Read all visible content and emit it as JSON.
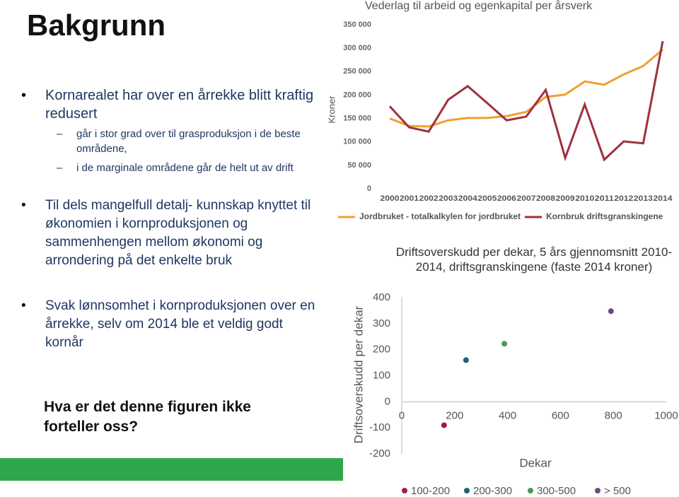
{
  "title": "Bakgrunn",
  "bullets": [
    {
      "text": "Kornarealet har over en årrekke blitt kraftig redusert",
      "sub": [
        "går i stor grad over til grasproduksjon i de beste områdene,",
        "i de marginale områdene går de helt ut av drift"
      ]
    },
    {
      "text": "Til dels mangelfull detalj- kunnskap knyttet til økonomien i kornproduksjonen og sammenhengen mellom økonomi og arrondering på det enkelte bruk"
    },
    {
      "text": "Svak lønnsomhet i kornproduksjonen over en årrekke, selv om 2014 ble et veldig godt kornår"
    }
  ],
  "question": "Hva er det denne figuren ikke forteller oss?",
  "chart_data": [
    {
      "type": "line",
      "title": "Vederlag til arbeid og egenkapital per årsverk",
      "y_label": "Kroner",
      "categories": [
        "2000",
        "2001",
        "2002",
        "2003",
        "2004",
        "2005",
        "2006",
        "2007",
        "2008",
        "2009",
        "2010",
        "2011",
        "2012",
        "2013",
        "2014"
      ],
      "series": [
        {
          "name": "Jordbruket - totalkalkylen for jordbruket",
          "color": "#f0a030",
          "values": [
            150000,
            134000,
            133000,
            146000,
            151000,
            151000,
            155000,
            164000,
            196000,
            201000,
            229000,
            222000,
            244000,
            262000,
            297000
          ]
        },
        {
          "name": "Kornbruk driftsgranskingene",
          "color": "#a0303f",
          "values": [
            176000,
            131000,
            122000,
            190000,
            219000,
            183000,
            146000,
            154000,
            211000,
            66000,
            180000,
            62000,
            101000,
            97000,
            315000
          ]
        }
      ],
      "ylim": [
        0,
        350000
      ],
      "yticks": [
        0,
        {
          "value": 50000,
          "label": "50 000"
        },
        {
          "value": 100000,
          "label": "100 000"
        },
        {
          "value": 150000,
          "label": "150 000"
        },
        {
          "value": 200000,
          "label": "200 000"
        },
        {
          "value": 250000,
          "label": "250 000"
        },
        {
          "value": 300000,
          "label": "300 000"
        },
        {
          "value": 350000,
          "label": "350 000"
        }
      ],
      "grid": false,
      "legend": "bottom"
    },
    {
      "type": "scatter",
      "title": "Driftsoverskudd per dekar, 5 års gjennomsnitt 2010-2014, driftsgranskingene (faste 2014 kroner)",
      "x_label": "Dekar",
      "y_label": "Driftsoverskudd per dekar",
      "series": [
        {
          "name": "100-200",
          "color": "#a0203a",
          "x": [
            160
          ],
          "values": [
            -90
          ]
        },
        {
          "name": "200-300",
          "color": "#1f5f7f",
          "x": [
            243
          ],
          "values": [
            160
          ]
        },
        {
          "name": "300-500",
          "color": "#4a9a50",
          "x": [
            388
          ],
          "values": [
            223
          ]
        },
        {
          "name": "> 500",
          "color": "#6a4a80",
          "x": [
            791
          ],
          "values": [
            348
          ]
        }
      ],
      "xlim": [
        0,
        1000
      ],
      "xticks": [
        0,
        200,
        400,
        600,
        800,
        1000
      ],
      "ylim": [
        -200,
        400
      ],
      "yticks": [
        -200,
        -100,
        0,
        100,
        200,
        300,
        400
      ],
      "grid": false,
      "legend": "bottom"
    }
  ]
}
